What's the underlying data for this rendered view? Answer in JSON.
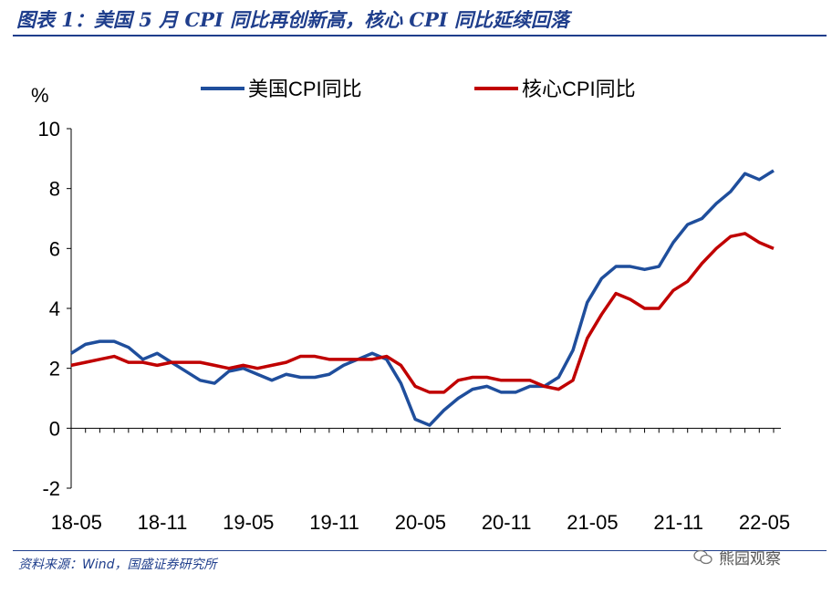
{
  "title": "图表 1：美国 5 月 CPI 同比再创新高，核心 CPI 同比延续回落",
  "source": "资料来源：Wind，国盛证券研究所",
  "watermark": "熊园观察",
  "colors": {
    "cpi": "#1f4e9c",
    "core": "#c00000",
    "title": "#1f3e8c"
  },
  "chart_data": {
    "type": "line",
    "ylabel": "%",
    "ylim": [
      -2,
      10
    ],
    "yticks": [
      -2,
      0,
      2,
      4,
      6,
      8,
      10
    ],
    "x": [
      "18-04",
      "18-05",
      "18-06",
      "18-07",
      "18-08",
      "18-09",
      "18-10",
      "18-11",
      "18-12",
      "19-01",
      "19-02",
      "19-03",
      "19-04",
      "19-05",
      "19-06",
      "19-07",
      "19-08",
      "19-09",
      "19-10",
      "19-11",
      "19-12",
      "20-01",
      "20-02",
      "20-03",
      "20-04",
      "20-05",
      "20-06",
      "20-07",
      "20-08",
      "20-09",
      "20-10",
      "20-11",
      "20-12",
      "21-01",
      "21-02",
      "21-03",
      "21-04",
      "21-05",
      "21-06",
      "21-07",
      "21-08",
      "21-09",
      "21-10",
      "21-11",
      "21-12",
      "22-01",
      "22-02",
      "22-03",
      "22-04",
      "22-05"
    ],
    "xtick_labels": [
      "18-05",
      "18-11",
      "19-05",
      "19-11",
      "20-05",
      "20-11",
      "21-05",
      "21-11",
      "22-05"
    ],
    "legend_position": "top",
    "series": [
      {
        "name": "美国CPI同比",
        "color": "#1f4e9c",
        "values": [
          2.5,
          2.8,
          2.9,
          2.9,
          2.7,
          2.3,
          2.5,
          2.2,
          1.9,
          1.6,
          1.5,
          1.9,
          2.0,
          1.8,
          1.6,
          1.8,
          1.7,
          1.7,
          1.8,
          2.1,
          2.3,
          2.5,
          2.3,
          1.5,
          0.3,
          0.1,
          0.6,
          1.0,
          1.3,
          1.4,
          1.2,
          1.2,
          1.4,
          1.4,
          1.7,
          2.6,
          4.2,
          5.0,
          5.4,
          5.4,
          5.3,
          5.4,
          6.2,
          6.8,
          7.0,
          7.5,
          7.9,
          8.5,
          8.3,
          8.6
        ]
      },
      {
        "name": "核心CPI同比",
        "color": "#c00000",
        "values": [
          2.1,
          2.2,
          2.3,
          2.4,
          2.2,
          2.2,
          2.1,
          2.2,
          2.2,
          2.2,
          2.1,
          2.0,
          2.1,
          2.0,
          2.1,
          2.2,
          2.4,
          2.4,
          2.3,
          2.3,
          2.3,
          2.3,
          2.4,
          2.1,
          1.4,
          1.2,
          1.2,
          1.6,
          1.7,
          1.7,
          1.6,
          1.6,
          1.6,
          1.4,
          1.3,
          1.6,
          3.0,
          3.8,
          4.5,
          4.3,
          4.0,
          4.0,
          4.6,
          4.9,
          5.5,
          6.0,
          6.4,
          6.5,
          6.2,
          6.0
        ]
      }
    ]
  }
}
